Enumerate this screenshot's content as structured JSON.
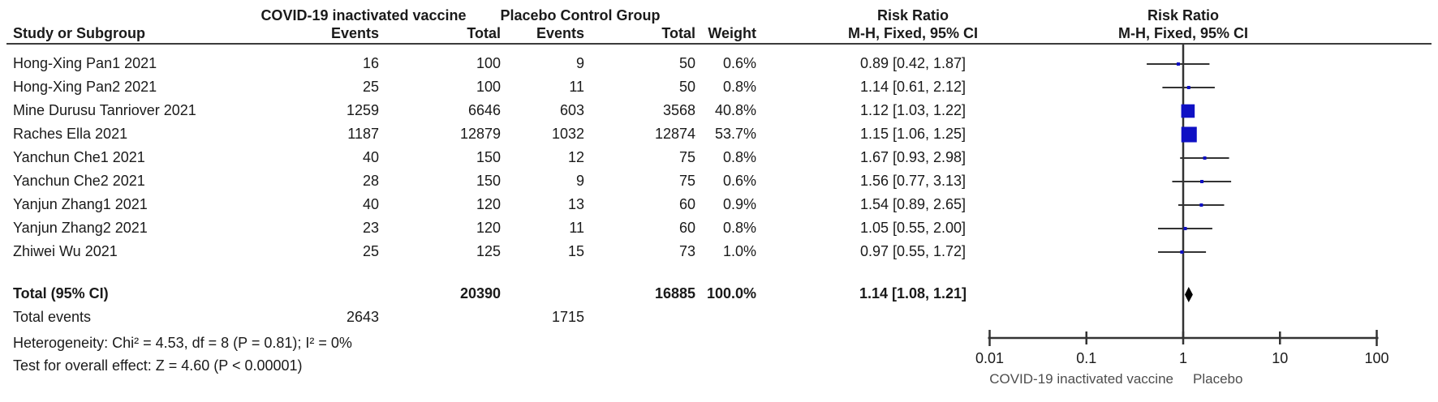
{
  "header": {
    "group1": "COVID-19 inactivated vaccine",
    "group2": "Placebo Control Group",
    "rr_text_col": "Risk Ratio",
    "rr_plot_col": "Risk Ratio"
  },
  "columns": {
    "study": "Study or Subgroup",
    "events": "Events",
    "total": "Total",
    "weight": "Weight",
    "mh_text": "M-H, Fixed, 95% CI",
    "mh_plot": "M-H, Fixed, 95% CI"
  },
  "colors": {
    "marker_blue": "#0f10c4",
    "diamond_black": "#000000",
    "line_dark": "#333333",
    "text_black": "#1a1a1a",
    "favour_gray": "#4d4d4d"
  },
  "chart_data": {
    "type": "forest",
    "x_scale": "log",
    "effect_measure": "Risk Ratio",
    "method": "M-H, Fixed, 95% CI",
    "x_tick_labels": [
      "0.01",
      "0.1",
      "1",
      "10",
      "100"
    ],
    "x_tick_values": [
      0.01,
      0.1,
      1,
      10,
      100
    ],
    "x_range": [
      0.01,
      100
    ],
    "studies": [
      {
        "name": "Hong-Xing Pan1 2021",
        "events1": "16",
        "total1": "100",
        "events2": "9",
        "total2": "50",
        "weight": "0.6%",
        "weight_value": 0.6,
        "rr_label": "0.89 [0.42, 1.87]",
        "rr": 0.89,
        "ci_low": 0.42,
        "ci_high": 1.87
      },
      {
        "name": "Hong-Xing Pan2 2021",
        "events1": "25",
        "total1": "100",
        "events2": "11",
        "total2": "50",
        "weight": "0.8%",
        "weight_value": 0.8,
        "rr_label": "1.14 [0.61, 2.12]",
        "rr": 1.14,
        "ci_low": 0.61,
        "ci_high": 2.12
      },
      {
        "name": "Mine Durusu Tanriover 2021",
        "events1": "1259",
        "total1": "6646",
        "events2": "603",
        "total2": "3568",
        "weight": "40.8%",
        "weight_value": 40.8,
        "rr_label": "1.12 [1.03, 1.22]",
        "rr": 1.12,
        "ci_low": 1.03,
        "ci_high": 1.22
      },
      {
        "name": "Raches Ella 2021",
        "events1": "1187",
        "total1": "12879",
        "events2": "1032",
        "total2": "12874",
        "weight": "53.7%",
        "weight_value": 53.7,
        "rr_label": "1.15 [1.06, 1.25]",
        "rr": 1.15,
        "ci_low": 1.06,
        "ci_high": 1.25
      },
      {
        "name": "Yanchun Che1 2021",
        "events1": "40",
        "total1": "150",
        "events2": "12",
        "total2": "75",
        "weight": "0.8%",
        "weight_value": 0.8,
        "rr_label": "1.67 [0.93, 2.98]",
        "rr": 1.67,
        "ci_low": 0.93,
        "ci_high": 2.98
      },
      {
        "name": "Yanchun Che2 2021",
        "events1": "28",
        "total1": "150",
        "events2": "9",
        "total2": "75",
        "weight": "0.6%",
        "weight_value": 0.6,
        "rr_label": "1.56 [0.77, 3.13]",
        "rr": 1.56,
        "ci_low": 0.77,
        "ci_high": 3.13
      },
      {
        "name": "Yanjun Zhang1 2021",
        "events1": "40",
        "total1": "120",
        "events2": "13",
        "total2": "60",
        "weight": "0.9%",
        "weight_value": 0.9,
        "rr_label": "1.54 [0.89, 2.65]",
        "rr": 1.54,
        "ci_low": 0.89,
        "ci_high": 2.65
      },
      {
        "name": "Yanjun Zhang2 2021",
        "events1": "23",
        "total1": "120",
        "events2": "11",
        "total2": "60",
        "weight": "0.8%",
        "weight_value": 0.8,
        "rr_label": "1.05 [0.55, 2.00]",
        "rr": 1.05,
        "ci_low": 0.55,
        "ci_high": 2.0
      },
      {
        "name": "Zhiwei Wu 2021",
        "events1": "25",
        "total1": "125",
        "events2": "15",
        "total2": "73",
        "weight": "1.0%",
        "weight_value": 1.0,
        "rr_label": "0.97 [0.55, 1.72]",
        "rr": 0.97,
        "ci_low": 0.55,
        "ci_high": 1.72
      }
    ],
    "total": {
      "label": "Total (95% CI)",
      "total1": "20390",
      "total2": "16885",
      "weight": "100.0%",
      "rr_label": "1.14 [1.08, 1.21]",
      "rr": 1.14,
      "ci_low": 1.08,
      "ci_high": 1.21
    },
    "total_events": {
      "label": "Total events",
      "events1": "2643",
      "events2": "1715"
    },
    "heterogeneity": "Heterogeneity: Chi² = 4.53, df = 8 (P = 0.81); I² = 0%",
    "overall_effect": "Test for overall effect: Z = 4.60 (P < 0.00001)",
    "favours_left": "COVID-19 inactivated vaccine",
    "favours_right": "Placebo"
  }
}
